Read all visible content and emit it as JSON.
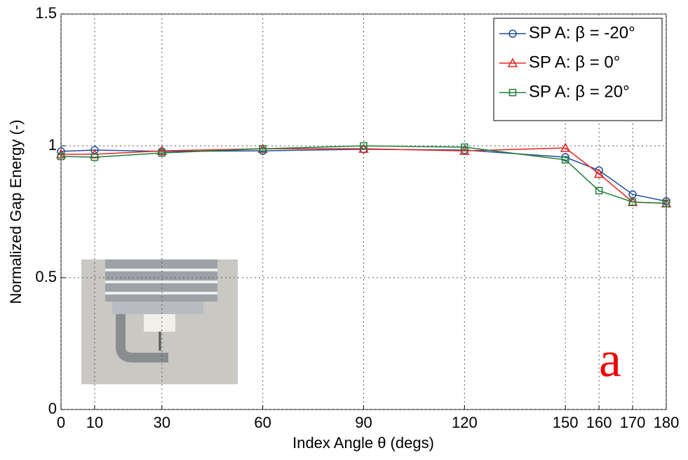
{
  "chart_data": {
    "type": "line",
    "x": [
      0,
      10,
      30,
      60,
      90,
      120,
      150,
      160,
      170,
      180
    ],
    "series": [
      {
        "name": "SP A: β = -20°",
        "color": "#1f4e9c",
        "marker": "circle",
        "values": [
          0.979,
          0.984,
          0.979,
          0.981,
          0.987,
          0.984,
          0.957,
          0.907,
          0.816,
          0.79
        ]
      },
      {
        "name": "SP A: β = 0°",
        "color": "#e8231f",
        "marker": "triangle",
        "values": [
          0.968,
          0.968,
          0.981,
          0.989,
          0.989,
          0.981,
          0.992,
          0.894,
          0.787,
          0.782
        ]
      },
      {
        "name": "SP A: β = 20°",
        "color": "#1e7d3a",
        "marker": "square",
        "values": [
          0.96,
          0.957,
          0.973,
          0.989,
          1.0,
          0.995,
          0.947,
          0.83,
          0.787,
          0.782
        ]
      }
    ],
    "xlim": [
      0,
      180
    ],
    "xticks": [
      0,
      10,
      30,
      60,
      90,
      120,
      150,
      160,
      170,
      180
    ],
    "ylim": [
      0,
      1.5
    ],
    "yticks": [
      0,
      0.5,
      1,
      1.5
    ],
    "xlabel": "Index Angle θ (degs)",
    "ylabel": "Normalized Gap Energy (-)",
    "annotation": "a",
    "grid": true,
    "legend": "upper right"
  }
}
